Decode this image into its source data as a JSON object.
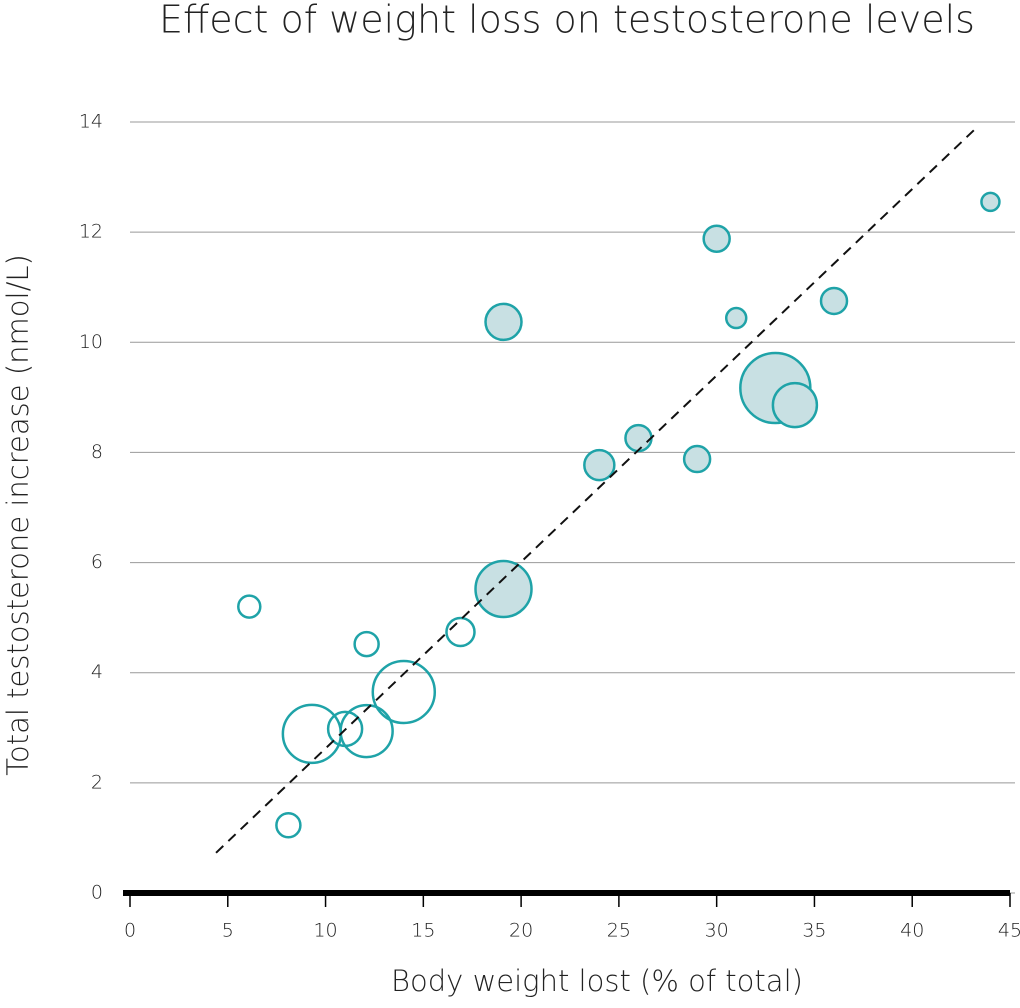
{
  "chart_data": {
    "type": "scatter",
    "title": "Effect of weight loss on testosterone levels",
    "x_label": "Body weight lost (% of total)",
    "y_label": "Total testosterone increase (nmol/L)",
    "xlim": [
      0,
      45
    ],
    "xticks": [
      0,
      5,
      10,
      15,
      20,
      25,
      30,
      35,
      40,
      45
    ],
    "ylim": [
      0,
      14
    ],
    "yticks": [
      0,
      2,
      4,
      6,
      8,
      10,
      12,
      14
    ],
    "grid": true,
    "series": [
      {
        "color": "#1fa3a8",
        "fill": "none",
        "x": [
          6.1,
          8.1,
          9.3,
          11.0,
          12.1,
          12.1,
          14.0,
          16.9
        ],
        "values": [
          5.2,
          1.23,
          2.89,
          2.98,
          2.94,
          4.52,
          3.65,
          4.74
        ],
        "sizes": [
          11,
          12,
          29,
          17,
          26,
          12,
          31,
          14
        ]
      },
      {
        "color": "#1fa3a8",
        "fill": "#c8e0e3",
        "x": [
          19.1,
          19.1,
          24.0,
          26.0,
          29.0,
          30.0,
          31.0,
          33.0,
          34.0,
          36.0,
          44.0
        ],
        "values": [
          5.52,
          10.37,
          7.77,
          8.26,
          7.88,
          11.88,
          10.44,
          9.17,
          8.86,
          10.75,
          12.55
        ],
        "sizes": [
          28,
          18,
          15,
          13,
          13,
          13,
          10,
          35,
          22,
          13,
          9
        ]
      }
    ],
    "trendline": {
      "x": [
        4.4,
        43.3
      ],
      "y": [
        0.73,
        13.9
      ],
      "color": "#111111"
    }
  }
}
